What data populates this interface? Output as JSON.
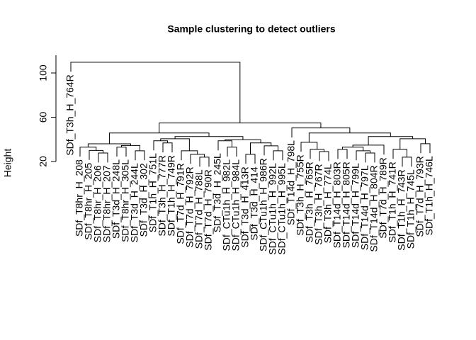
{
  "chart_data": {
    "type": "dendrogram",
    "title": "Sample clustering to detect outliers",
    "y_label": "Height",
    "labels": [
      "SDf_T3h_H_764R",
      "SDf_T8hr_H_208",
      "SDf_T8hr_H_205",
      "SDf_T8hr_H_206",
      "SDf_T8hr_H_207",
      "SDf_T3d_H_248L",
      "SDf_T8hr_H_305L",
      "SDf_T3d_H_244L",
      "SDf_T3d_H_302",
      "SDf_T1h_H_751L",
      "SDf_T3h_H_777R",
      "SDf_T1h_H_749R",
      "SDf_T7d_H_791R",
      "SDf_T7d_H_792R",
      "SDf_T7d_H_788L",
      "SDf_T7d_H_790R",
      "SDf_T3d_H_245L",
      "SDf_CTu1h_H_982L",
      "SDf_CTu1h_H_984L",
      "SDf_T3d_H_413R",
      "SDf_T3d_H_414",
      "SDf_CTu1h_H_986R",
      "SDf_CTu1h_H_992L",
      "SDf_CTu1h_H_995L",
      "SDf_T14d_H_798L",
      "SDf_T3h_H_755R",
      "SDf_T3h_H_765R",
      "SDf_T3h_H_767R",
      "SDf_T3h_H_774L",
      "SDf_T14d_H_803R",
      "SDf_T14d_H_805R",
      "SDf_T14d_H_799L",
      "SDf_T14d_H_797L",
      "SDf_T14d_H_804R",
      "SDf_T7d_H_789R",
      "SDf_T1h_H_741R",
      "SDf_T1h_H_743R",
      "SDf_T1h_H_745L",
      "SDf_T7d_H_793R",
      "SDf_T1h_H_746L"
    ],
    "merge": [
      [
        -4,
        -5
      ],
      [
        -3,
        1
      ],
      [
        -2,
        2
      ],
      [
        -6,
        -7
      ],
      [
        -8,
        -9
      ],
      [
        4,
        5
      ],
      [
        3,
        6
      ],
      [
        -11,
        -12
      ],
      [
        -10,
        8
      ],
      [
        -15,
        -16
      ],
      [
        -14,
        10
      ],
      [
        -13,
        11
      ],
      [
        9,
        12
      ],
      [
        -18,
        -19
      ],
      [
        -17,
        14
      ],
      [
        -20,
        -21
      ],
      [
        -23,
        -24
      ],
      [
        -22,
        17
      ],
      [
        16,
        18
      ],
      [
        15,
        19
      ],
      [
        13,
        20
      ],
      [
        7,
        21
      ],
      [
        -28,
        -29
      ],
      [
        -27,
        23
      ],
      [
        -26,
        24
      ],
      [
        -30,
        -31
      ],
      [
        -33,
        -34
      ],
      [
        -32,
        27
      ],
      [
        26,
        28
      ],
      [
        29,
        -35
      ],
      [
        -37,
        -38
      ],
      [
        -36,
        31
      ],
      [
        -39,
        -40
      ],
      [
        32,
        33
      ],
      [
        30,
        34
      ],
      [
        25,
        35
      ],
      [
        -25,
        36
      ],
      [
        22,
        37
      ],
      [
        -1,
        38
      ]
    ],
    "height": [
      27.7,
      30,
      33,
      33,
      29.7,
      34.5,
      36,
      36.8,
      38.7,
      23.9,
      26.5,
      29.7,
      40.6,
      33,
      38.7,
      26.5,
      29.7,
      34.2,
      36.8,
      39.7,
      42.6,
      45.8,
      29,
      31,
      37.4,
      31,
      27.7,
      29.7,
      33,
      34.8,
      23.9,
      31,
      36.1,
      40.6,
      42.6,
      45.8,
      50.3,
      54.8,
      109.7
    ],
    "ylim": [
      20,
      116
    ],
    "yticks": [
      20,
      60,
      100
    ]
  }
}
